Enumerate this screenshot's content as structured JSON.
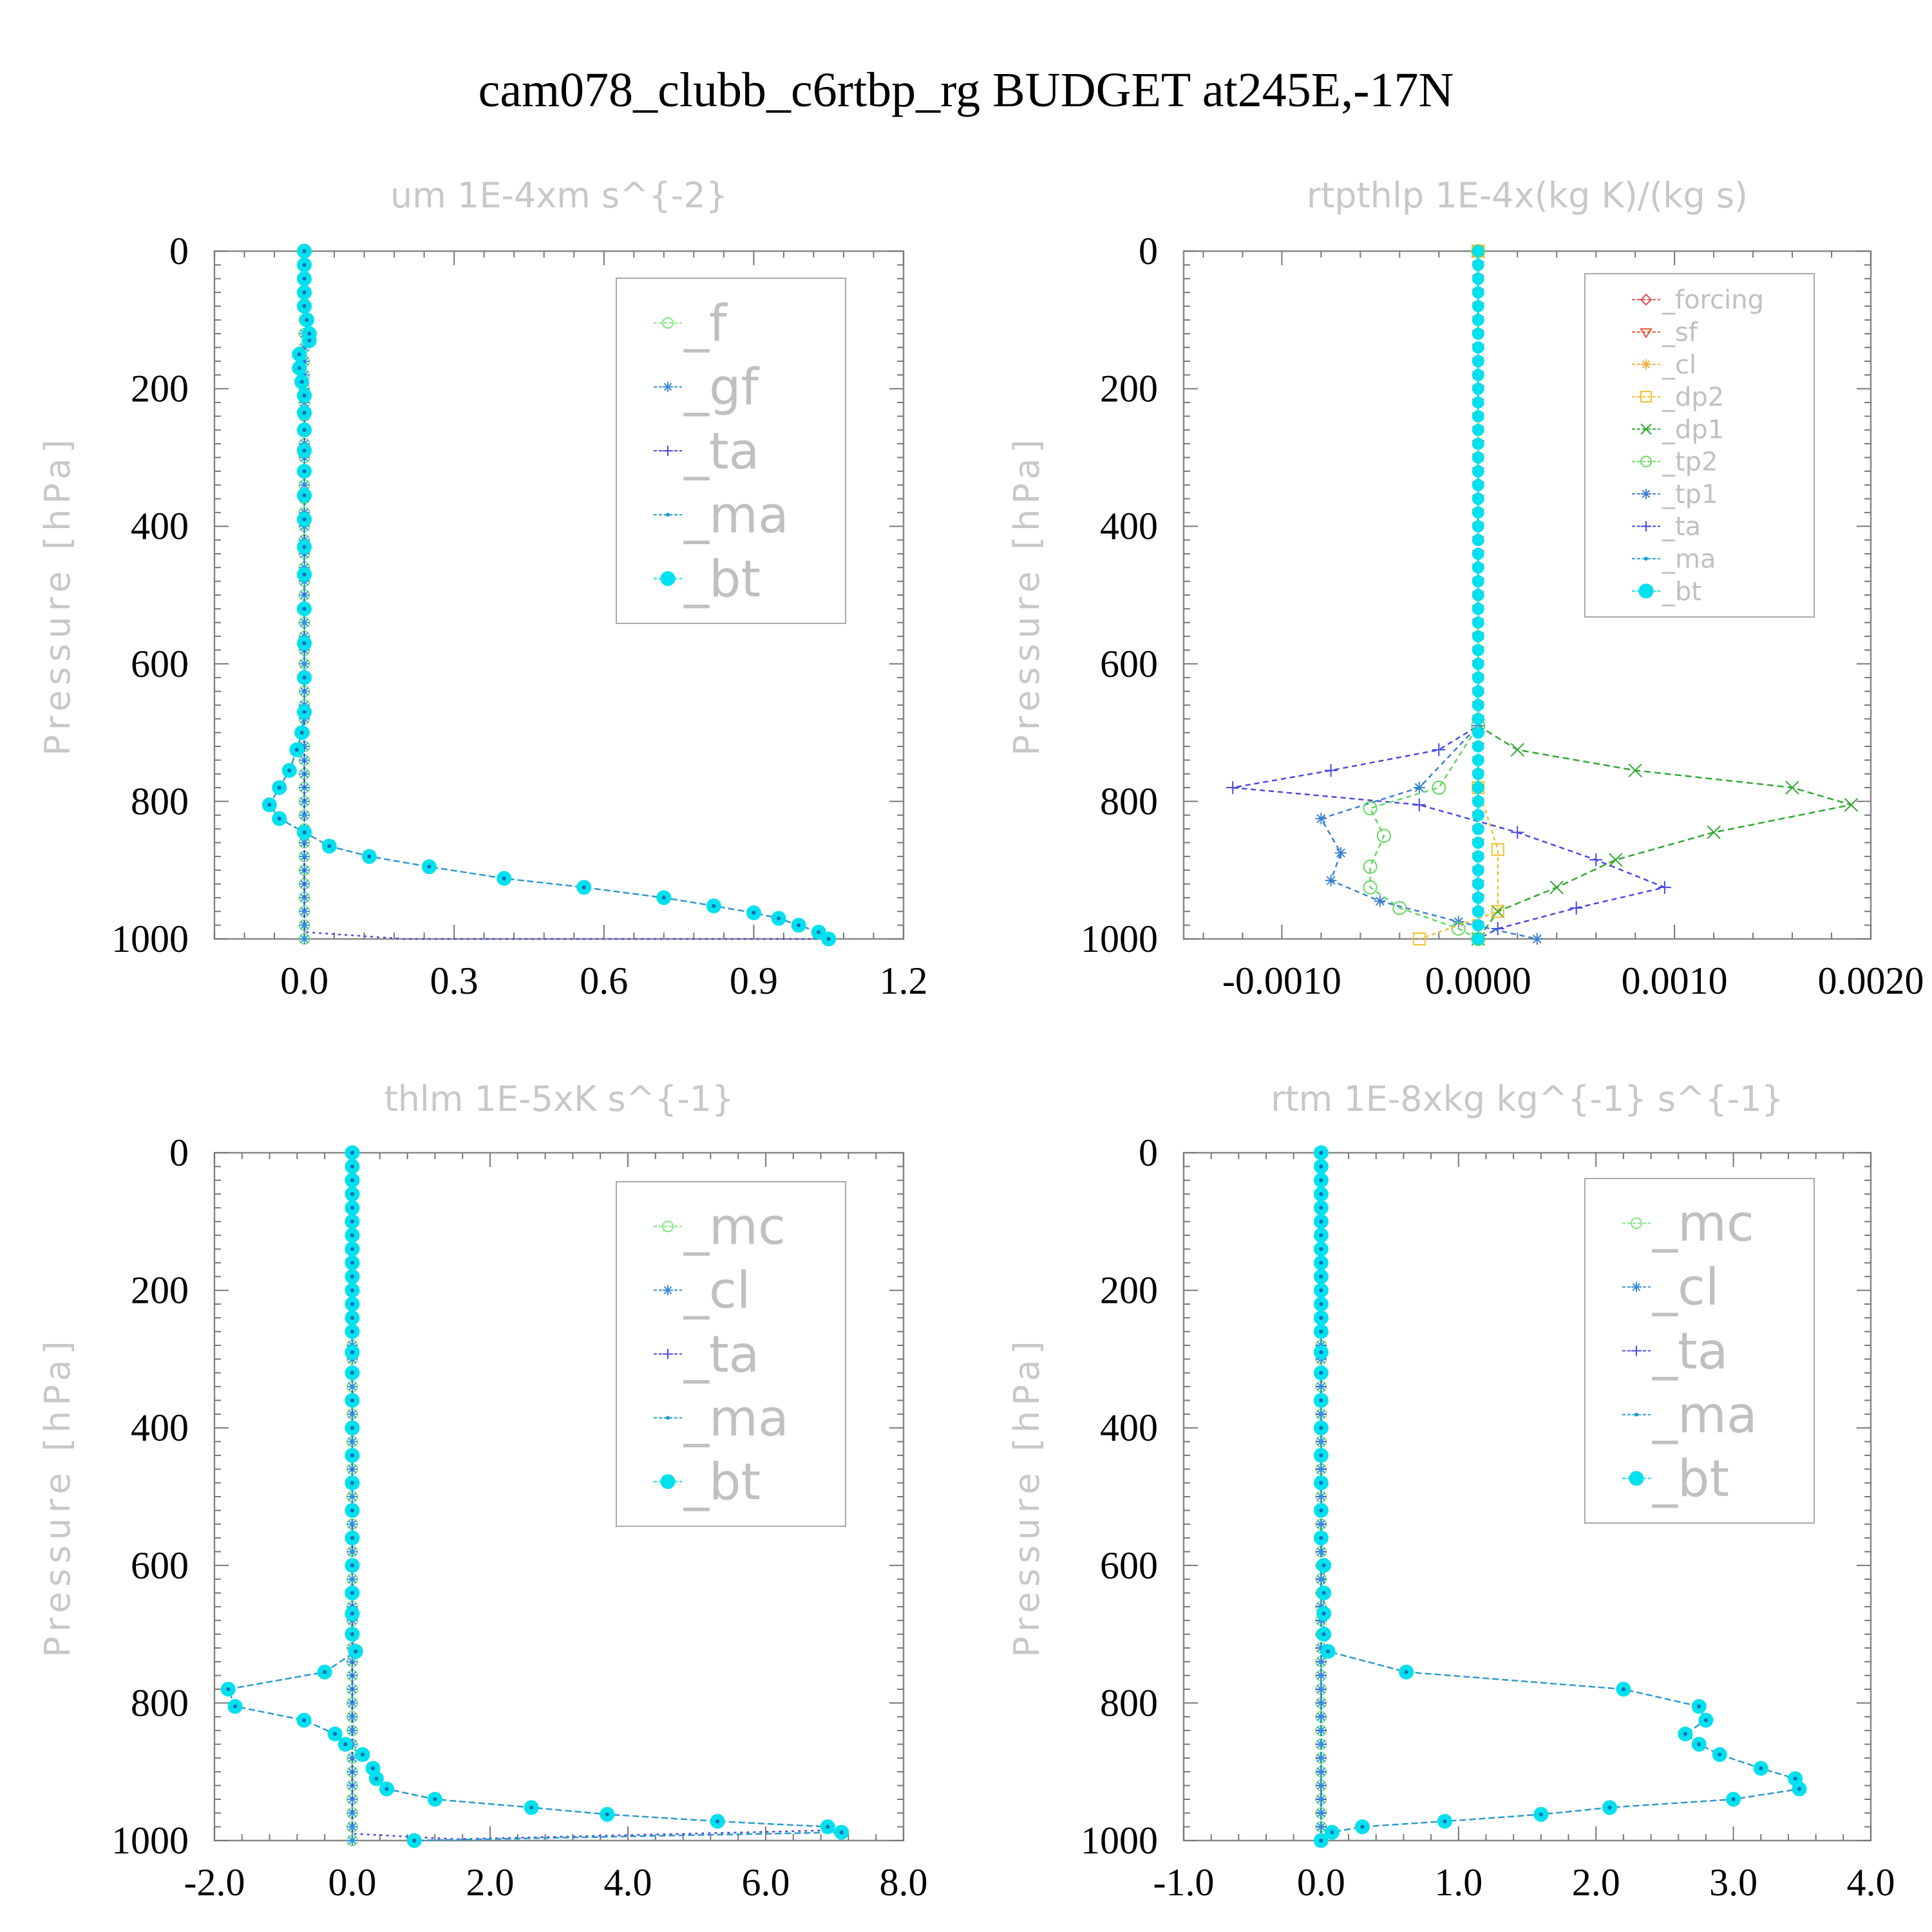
{
  "title": "cam078_clubb_c6rtbp_rg  BUDGET at245E,-17N",
  "y_axis_label": "Pressure [hPa]",
  "colors": {
    "_f": "#7ce87c",
    "_gf": "#3c8ed8",
    "_ta": "#4848e0",
    "_ma": "#1a9ad6",
    "_bt": "#00e0ee",
    "_forcing": "#e05050",
    "_sf": "#e85030",
    "_cl_orange": "#f0b040",
    "_dp2": "#f0c030",
    "_dp1": "#30a830",
    "_tp2": "#60d860",
    "_tp1": "#3a80d0",
    "_mc": "#7ce87c",
    "_cl": "#3c8ed8"
  },
  "chart_data": [
    {
      "id": "um",
      "type": "line",
      "title": "um   1E-4xm s^{-2}",
      "ylabel": "Pressure [hPa]",
      "xlim": [
        -0.18,
        1.2
      ],
      "ylim": [
        1000,
        0
      ],
      "xticks": [
        "0.0",
        "0.3",
        "0.6",
        "0.9",
        "1.2"
      ],
      "xtick_values": [
        0.0,
        0.3,
        0.6,
        0.9,
        1.2
      ],
      "yticks": [
        "0",
        "200",
        "400",
        "600",
        "800",
        "1000"
      ],
      "ytick_values": [
        0,
        200,
        400,
        600,
        800,
        1000
      ],
      "legend": [
        "_f",
        "_gf",
        "_ta",
        "_ma",
        "_bt"
      ],
      "legend_size": "large",
      "profiles": {
        "zero": [
          0,
          0
        ],
        "bt": [
          [
            0,
            0
          ],
          [
            0,
            20
          ],
          [
            0,
            40
          ],
          [
            0,
            60
          ],
          [
            0,
            80
          ],
          [
            0.005,
            100
          ],
          [
            0.01,
            120
          ],
          [
            0.01,
            130
          ],
          [
            -0.01,
            150
          ],
          [
            -0.01,
            170
          ],
          [
            -0.005,
            190
          ],
          [
            0,
            210
          ],
          [
            0,
            235
          ],
          [
            0,
            260
          ],
          [
            0,
            290
          ],
          [
            0,
            320
          ],
          [
            0,
            355
          ],
          [
            0,
            390
          ],
          [
            0,
            430
          ],
          [
            0,
            470
          ],
          [
            0,
            520
          ],
          [
            0,
            570
          ],
          [
            0,
            620
          ],
          [
            0,
            670
          ],
          [
            -0.005,
            700
          ],
          [
            -0.015,
            725
          ],
          [
            -0.03,
            755
          ],
          [
            -0.05,
            780
          ],
          [
            -0.07,
            805
          ],
          [
            -0.05,
            825
          ],
          [
            0,
            845
          ],
          [
            0.05,
            865
          ],
          [
            0.13,
            880
          ],
          [
            0.25,
            895
          ],
          [
            0.4,
            912
          ],
          [
            0.56,
            925
          ],
          [
            0.72,
            940
          ],
          [
            0.82,
            952
          ],
          [
            0.9,
            962
          ],
          [
            0.95,
            970
          ],
          [
            0.99,
            980
          ],
          [
            1.03,
            990
          ],
          [
            1.05,
            1000
          ]
        ],
        "ta": [
          [
            0,
            0
          ],
          [
            0,
            990
          ],
          [
            0.2,
            1000
          ],
          [
            1.05,
            1000
          ]
        ]
      }
    },
    {
      "id": "rtpthlp",
      "type": "line",
      "title": "rtpthlp   1E-4x(kg K)/(kg s)",
      "ylabel": "Pressure [hPa]",
      "xlim": [
        -0.0015,
        0.002
      ],
      "ylim": [
        1000,
        0
      ],
      "xticks": [
        "-0.0010",
        "0.0000",
        "0.0010",
        "0.0020"
      ],
      "xtick_values": [
        -0.001,
        0.0,
        0.001,
        0.002
      ],
      "yticks": [
        "0",
        "200",
        "400",
        "600",
        "800",
        "1000"
      ],
      "ytick_values": [
        0,
        200,
        400,
        600,
        800,
        1000
      ],
      "legend": [
        "_forcing",
        "_sf",
        "_cl",
        "_dp2",
        "_dp1",
        "_tp2",
        "_tp1",
        "_ta",
        "_ma",
        "_bt"
      ],
      "legend_size": "small",
      "profiles": {
        "ta": [
          [
            0,
            0
          ],
          [
            0,
            690
          ],
          [
            -0.0002,
            725
          ],
          [
            -0.00075,
            755
          ],
          [
            -0.00125,
            780
          ],
          [
            -0.0003,
            805
          ],
          [
            0.0002,
            845
          ],
          [
            0.0006,
            885
          ],
          [
            0.00095,
            925
          ],
          [
            0.0005,
            955
          ],
          [
            0.0001,
            985
          ],
          [
            0,
            1000
          ]
        ],
        "dp1": [
          [
            0,
            0
          ],
          [
            0,
            690
          ],
          [
            0.0002,
            725
          ],
          [
            0.0008,
            755
          ],
          [
            0.0016,
            780
          ],
          [
            0.0019,
            805
          ],
          [
            0.0012,
            845
          ],
          [
            0.0007,
            885
          ],
          [
            0.0004,
            925
          ],
          [
            0.0001,
            960
          ],
          [
            0,
            1000
          ]
        ],
        "tp1": [
          [
            0,
            0
          ],
          [
            0,
            690
          ],
          [
            -0.0003,
            780
          ],
          [
            -0.0008,
            825
          ],
          [
            -0.0007,
            875
          ],
          [
            -0.00075,
            915
          ],
          [
            -0.0005,
            945
          ],
          [
            -0.0001,
            975
          ],
          [
            0.0003,
            1000
          ]
        ],
        "tp2": [
          [
            0,
            0
          ],
          [
            0,
            690
          ],
          [
            -0.0002,
            780
          ],
          [
            -0.00055,
            810
          ],
          [
            -0.00048,
            850
          ],
          [
            -0.00055,
            895
          ],
          [
            -0.00055,
            925
          ],
          [
            -0.0004,
            955
          ],
          [
            -0.0001,
            985
          ],
          [
            0,
            1000
          ]
        ],
        "dp2": [
          [
            0,
            0
          ],
          [
            0,
            780
          ],
          [
            0.0001,
            870
          ],
          [
            0.0001,
            960
          ],
          [
            -0.0003,
            1000
          ]
        ]
      }
    },
    {
      "id": "thlm",
      "type": "line",
      "title": "thlm   1E-5xK s^{-1}",
      "ylabel": "Pressure [hPa]",
      "xlim": [
        -2.0,
        8.0
      ],
      "ylim": [
        1000,
        0
      ],
      "xticks": [
        "-2.0",
        "0.0",
        "2.0",
        "4.0",
        "6.0",
        "8.0"
      ],
      "xtick_values": [
        -2.0,
        0.0,
        2.0,
        4.0,
        6.0,
        8.0
      ],
      "yticks": [
        "0",
        "200",
        "400",
        "600",
        "800",
        "1000"
      ],
      "ytick_values": [
        0,
        200,
        400,
        600,
        800,
        1000
      ],
      "legend": [
        "_mc",
        "_cl",
        "_ta",
        "_ma",
        "_bt"
      ],
      "legend_size": "large",
      "profiles": {
        "zero": [
          0,
          0
        ],
        "bt": [
          [
            0,
            0
          ],
          [
            0,
            20
          ],
          [
            0,
            40
          ],
          [
            0,
            60
          ],
          [
            0,
            80
          ],
          [
            0,
            100
          ],
          [
            0,
            120
          ],
          [
            0,
            140
          ],
          [
            0,
            160
          ],
          [
            0,
            180
          ],
          [
            0,
            200
          ],
          [
            0,
            220
          ],
          [
            0,
            240
          ],
          [
            0,
            260
          ],
          [
            0,
            290
          ],
          [
            0,
            320
          ],
          [
            0,
            360
          ],
          [
            0,
            400
          ],
          [
            0,
            440
          ],
          [
            0,
            480
          ],
          [
            0,
            520
          ],
          [
            0,
            560
          ],
          [
            0,
            600
          ],
          [
            0,
            640
          ],
          [
            0,
            670
          ],
          [
            0,
            700
          ],
          [
            0.05,
            725
          ],
          [
            -0.4,
            755
          ],
          [
            -1.8,
            780
          ],
          [
            -1.7,
            805
          ],
          [
            -0.7,
            825
          ],
          [
            -0.25,
            845
          ],
          [
            -0.1,
            860
          ],
          [
            0.15,
            875
          ],
          [
            0.3,
            895
          ],
          [
            0.35,
            910
          ],
          [
            0.5,
            925
          ],
          [
            1.2,
            940
          ],
          [
            2.6,
            952
          ],
          [
            3.7,
            962
          ],
          [
            5.3,
            972
          ],
          [
            6.9,
            980
          ],
          [
            7.1,
            988
          ],
          [
            0.9,
            1000
          ]
        ],
        "ta": [
          [
            0,
            0
          ],
          [
            0,
            990
          ],
          [
            1.5,
            998
          ],
          [
            7.0,
            985
          ]
        ]
      }
    },
    {
      "id": "rtm",
      "type": "line",
      "title": "rtm   1E-8xkg kg^{-1} s^{-1}",
      "ylabel": "Pressure [hPa]",
      "xlim": [
        -1.0,
        4.0
      ],
      "ylim": [
        1000,
        0
      ],
      "xticks": [
        "-1.0",
        "0.0",
        "1.0",
        "2.0",
        "3.0",
        "4.0"
      ],
      "xtick_values": [
        -1.0,
        0.0,
        1.0,
        2.0,
        3.0,
        4.0
      ],
      "yticks": [
        "0",
        "200",
        "400",
        "600",
        "800",
        "1000"
      ],
      "ytick_values": [
        0,
        200,
        400,
        600,
        800,
        1000
      ],
      "legend": [
        "_mc",
        "_cl",
        "_ta",
        "_ma",
        "_bt"
      ],
      "legend_size": "large",
      "profiles": {
        "zero": [
          0,
          0
        ],
        "bt": [
          [
            0,
            0
          ],
          [
            0,
            20
          ],
          [
            0,
            40
          ],
          [
            0,
            60
          ],
          [
            0,
            80
          ],
          [
            0,
            100
          ],
          [
            0,
            120
          ],
          [
            0,
            140
          ],
          [
            0,
            160
          ],
          [
            0,
            180
          ],
          [
            0,
            200
          ],
          [
            0,
            220
          ],
          [
            0,
            240
          ],
          [
            0,
            260
          ],
          [
            0,
            290
          ],
          [
            0,
            320
          ],
          [
            0,
            360
          ],
          [
            0,
            400
          ],
          [
            0,
            440
          ],
          [
            0,
            480
          ],
          [
            0,
            520
          ],
          [
            0,
            560
          ],
          [
            0.02,
            600
          ],
          [
            0.02,
            640
          ],
          [
            0.02,
            670
          ],
          [
            0.02,
            700
          ],
          [
            0.05,
            725
          ],
          [
            0.62,
            755
          ],
          [
            2.2,
            780
          ],
          [
            2.75,
            805
          ],
          [
            2.8,
            825
          ],
          [
            2.65,
            845
          ],
          [
            2.75,
            860
          ],
          [
            2.9,
            875
          ],
          [
            3.2,
            895
          ],
          [
            3.45,
            910
          ],
          [
            3.48,
            925
          ],
          [
            3.0,
            940
          ],
          [
            2.1,
            952
          ],
          [
            1.6,
            962
          ],
          [
            0.9,
            972
          ],
          [
            0.3,
            980
          ],
          [
            0.08,
            988
          ],
          [
            0,
            1000
          ]
        ]
      }
    }
  ]
}
